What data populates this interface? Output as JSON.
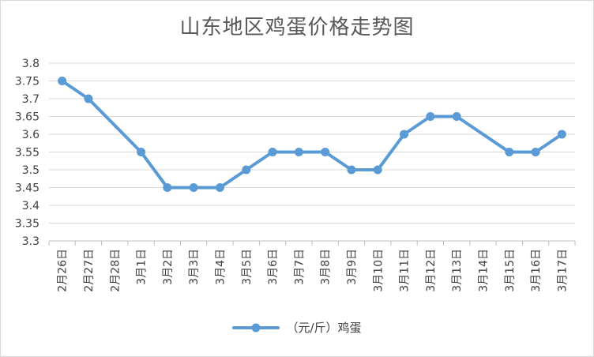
{
  "title": "山东地区鸡蛋价格走势图",
  "series_color": "#5b9bd5",
  "chart_data": {
    "type": "line",
    "title": "山东地区鸡蛋价格走势图",
    "categories": [
      "2月26日",
      "2月27日",
      "2月28日",
      "3月1日",
      "3月2日",
      "3月3日",
      "3月4日",
      "3月5日",
      "3月6日",
      "3月7日",
      "3月8日",
      "3月9日",
      "3月10日",
      "3月11日",
      "3月12日",
      "3月13日",
      "3月14日",
      "3月15日",
      "3月16日",
      "3月17日"
    ],
    "series": [
      {
        "name": "（元/斤）鸡蛋",
        "values": [
          3.75,
          3.7,
          null,
          3.55,
          3.45,
          3.45,
          3.45,
          3.5,
          3.55,
          3.55,
          3.55,
          3.5,
          3.5,
          3.6,
          3.65,
          3.65,
          null,
          3.55,
          3.55,
          3.6
        ]
      }
    ],
    "ylim": [
      3.3,
      3.8
    ],
    "yticks": [
      "3.3",
      "3.35",
      "3.4",
      "3.45",
      "3.5",
      "3.55",
      "3.6",
      "3.65",
      "3.7",
      "3.75",
      "3.8"
    ],
    "grid": "horizontal",
    "legend": "bottom",
    "connect_gaps": true
  }
}
